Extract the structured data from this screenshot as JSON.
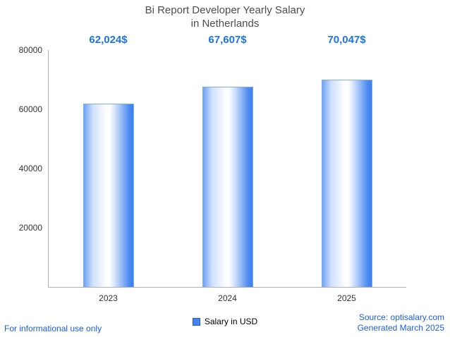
{
  "title": {
    "line1": "Bi Report Developer Yearly Salary",
    "line2": "in Netherlands"
  },
  "chart_data": {
    "type": "bar",
    "title": "Bi Report Developer Yearly Salary in Netherlands",
    "categories": [
      "2023",
      "2024",
      "2025"
    ],
    "values": [
      62024,
      67607,
      70047
    ],
    "value_labels": [
      "62,024$",
      "67,607$",
      "70,047$"
    ],
    "xlabel": "",
    "ylabel": "",
    "ylim": [
      0,
      80000
    ],
    "yticks": [
      20000,
      40000,
      60000,
      80000
    ],
    "grid": false,
    "legend": [
      "Salary in USD"
    ],
    "legend_position": "bottom",
    "bar_color": "#4285f4",
    "label_color": "#1a73e8",
    "axis_color": "#b0b0b0"
  },
  "legend": {
    "label": "Salary in USD"
  },
  "footer": {
    "left": "For informational use only",
    "source": "Source: optisalary.com",
    "generated": "Generated March 2025"
  },
  "colors": {
    "accent_blue": "#1a73e8",
    "bar_blue": "#4285f4",
    "title_gray": "#4d4d4d"
  }
}
